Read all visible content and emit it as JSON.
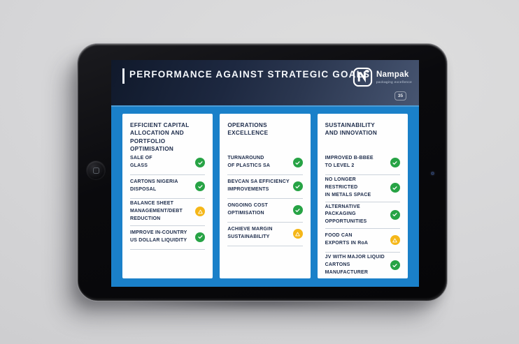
{
  "slide": {
    "title": "PERFORMANCE AGAINST STRATEGIC GOALS",
    "page_number": "35",
    "logo": {
      "name": "Nampak",
      "tagline": "packaging excellence"
    },
    "colors": {
      "body_blue": "#1a80c9",
      "header_navy": "#1d2840",
      "text_navy": "#1c2b4a",
      "success_green": "#27a345",
      "warning_amber": "#f5b719"
    },
    "columns": [
      {
        "heading": "EFFICIENT CAPITAL\nALLOCATION AND\nPORTFOLIO OPTIMISATION",
        "items": [
          {
            "label": "SALE OF\nGLASS",
            "status": "achieved",
            "icon": "check-icon"
          },
          {
            "label": "CARTONS NIGERIA\nDISPOSAL",
            "status": "achieved",
            "icon": "check-icon"
          },
          {
            "label": "BALANCE SHEET\nMANAGEMENT/DEBT\nREDUCTION",
            "status": "in-progress",
            "icon": "warning-icon"
          },
          {
            "label": "IMPROVE IN-COUNTRY\nUS DOLLAR LIQUIDITY",
            "status": "achieved",
            "icon": "check-icon"
          }
        ]
      },
      {
        "heading": "OPERATIONS\nEXCELLENCE",
        "items": [
          {
            "label": "TURNAROUND\nOF PLASTICS SA",
            "status": "achieved",
            "icon": "check-icon"
          },
          {
            "label": "BEVCAN SA EFFICIENCY\nIMPROVEMENTS",
            "status": "achieved",
            "icon": "check-icon"
          },
          {
            "label": "ONGOING COST\nOPTIMISATION",
            "status": "achieved",
            "icon": "check-icon"
          },
          {
            "label": "ACHIEVE MARGIN\nSUSTAINABILITY",
            "status": "in-progress",
            "icon": "warning-icon"
          }
        ]
      },
      {
        "heading": "SUSTAINABILITY\nAND INNOVATION",
        "items": [
          {
            "label": "IMPROVED B-BBEE\nTO LEVEL 2",
            "status": "achieved",
            "icon": "check-icon"
          },
          {
            "label": "NO LONGER RESTRICTED\nIN METALS SPACE",
            "status": "achieved",
            "icon": "check-icon"
          },
          {
            "label": "ALTERNATIVE PACKAGING\nOPPORTUNITIES",
            "status": "achieved",
            "icon": "check-icon"
          },
          {
            "label": "FOOD CAN\nEXPORTS IN RoA",
            "status": "in-progress",
            "icon": "warning-icon"
          },
          {
            "label": "JV WITH MAJOR LIQUID\nCARTONS MANUFACTURER",
            "status": "achieved",
            "icon": "check-icon"
          }
        ]
      }
    ]
  }
}
